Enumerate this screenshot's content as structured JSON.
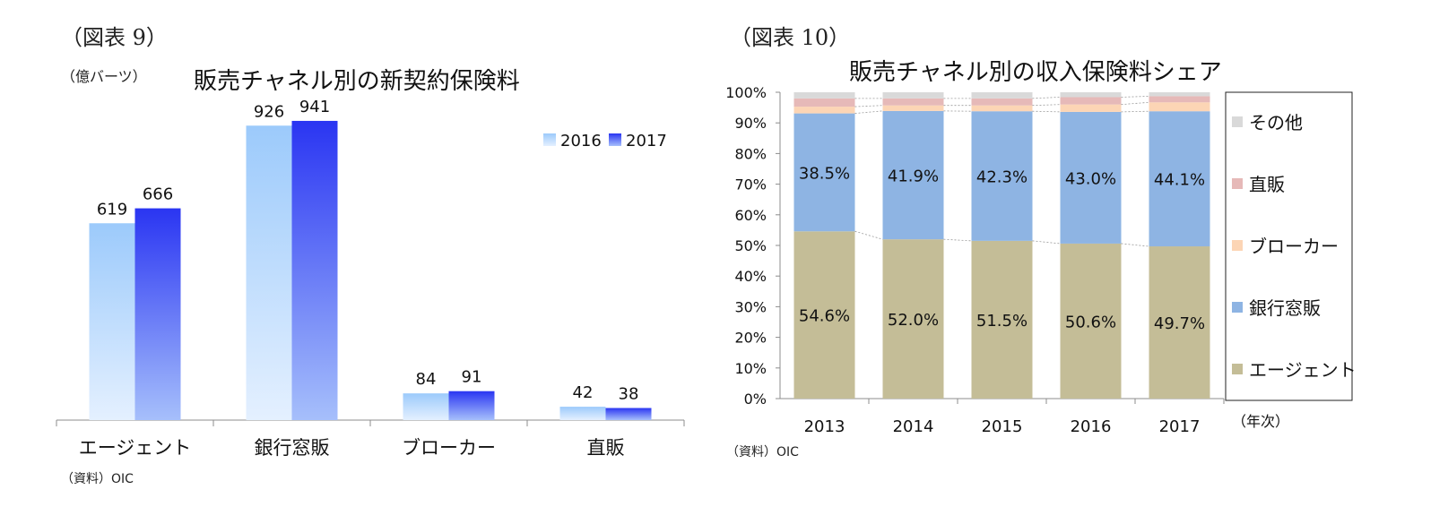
{
  "panel1": {
    "fig_label": "（図表 9）",
    "unit": "（億バーツ）",
    "source": "（資料）OIC",
    "chart_data": {
      "type": "bar",
      "title": "販売チャネル別の新契約保険料",
      "categories": [
        "エージェント",
        "銀行窓販",
        "ブローカー",
        "直販"
      ],
      "series": [
        {
          "name": "2016",
          "values": [
            619,
            926,
            84,
            42
          ]
        },
        {
          "name": "2017",
          "values": [
            666,
            941,
            91,
            38
          ]
        }
      ],
      "ylim": [
        0,
        1000
      ],
      "grid": false,
      "legend": "top-right",
      "colors": {
        "2016": "#9ccafb",
        "2017": "#2a35f2"
      }
    }
  },
  "panel2": {
    "fig_label": "（図表 10）",
    "source": "（資料）OIC",
    "axis_suffix": "（年次）",
    "chart_data": {
      "type": "bar",
      "stacked": true,
      "title": "販売チャネル別の収入保険料シェア",
      "categories": [
        "2013",
        "2014",
        "2015",
        "2016",
        "2017"
      ],
      "y_ticks": [
        "0%",
        "10%",
        "20%",
        "30%",
        "40%",
        "50%",
        "60%",
        "70%",
        "80%",
        "90%",
        "100%"
      ],
      "ylim": [
        0,
        100
      ],
      "legend": "right",
      "series": [
        {
          "name": "エージェント",
          "color": "#c4bd97",
          "values": [
            54.6,
            52.0,
            51.5,
            50.6,
            49.7
          ],
          "labels": [
            "54.6%",
            "52.0%",
            "51.5%",
            "50.6%",
            "49.7%"
          ]
        },
        {
          "name": "銀行窓販",
          "color": "#8eb4e3",
          "values": [
            38.5,
            41.9,
            42.3,
            43.0,
            44.1
          ],
          "labels": [
            "38.5%",
            "41.9%",
            "42.3%",
            "43.0%",
            "44.1%"
          ]
        },
        {
          "name": "ブローカー",
          "color": "#fcd5b5",
          "values": [
            2.2,
            1.8,
            1.9,
            2.4,
            2.9
          ]
        },
        {
          "name": "直販",
          "color": "#e6b9b8",
          "values": [
            2.7,
            2.3,
            2.3,
            2.4,
            2.0
          ]
        },
        {
          "name": "その他",
          "color": "#d9d9d9",
          "values": [
            2.0,
            2.0,
            2.0,
            1.6,
            1.3
          ]
        }
      ]
    }
  }
}
